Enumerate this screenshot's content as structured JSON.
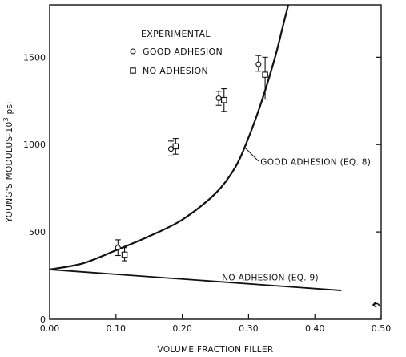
{
  "chart_data": {
    "type": "scatter",
    "title": "",
    "xlabel": "VOLUME FRACTION FILLER",
    "ylabel_prefix": "YOUNG'S MODULUS-10",
    "ylabel_sup": "3",
    "ylabel_suffix": " psi",
    "xlim": [
      0,
      0.5
    ],
    "ylim": [
      0,
      1800
    ],
    "xticks": [
      {
        "value": 0.0,
        "label": "0.00"
      },
      {
        "value": 0.1,
        "label": "0.10"
      },
      {
        "value": 0.2,
        "label": "0.20"
      },
      {
        "value": 0.3,
        "label": "0.30"
      },
      {
        "value": 0.4,
        "label": "0.40"
      },
      {
        "value": 0.5,
        "label": "0.50"
      }
    ],
    "yticks": [
      {
        "value": 0,
        "label": "0"
      },
      {
        "value": 500,
        "label": "500"
      },
      {
        "value": 1000,
        "label": "1000"
      },
      {
        "value": 1500,
        "label": "1500"
      }
    ],
    "grid": false,
    "legend": {
      "title": "EXPERIMENTAL",
      "placement": "top-left",
      "entries": [
        {
          "marker": "circle",
          "label": "GOOD ADHESION"
        },
        {
          "marker": "square",
          "label": "NO ADHESION"
        }
      ]
    },
    "series": [
      {
        "name": "GOOD ADHESION",
        "marker": "circle",
        "points": [
          {
            "x": 0.103,
            "y": 410,
            "err_low": 365,
            "err_high": 455
          },
          {
            "x": 0.183,
            "y": 975,
            "err_low": 935,
            "err_high": 1020
          },
          {
            "x": 0.255,
            "y": 1265,
            "err_low": 1225,
            "err_high": 1305
          },
          {
            "x": 0.315,
            "y": 1460,
            "err_low": 1420,
            "err_high": 1510
          }
        ]
      },
      {
        "name": "NO ADHESION",
        "marker": "square",
        "points": [
          {
            "x": 0.113,
            "y": 370,
            "err_low": 335,
            "err_high": 410
          },
          {
            "x": 0.19,
            "y": 990,
            "err_low": 945,
            "err_high": 1035
          },
          {
            "x": 0.263,
            "y": 1255,
            "err_low": 1190,
            "err_high": 1320
          },
          {
            "x": 0.325,
            "y": 1400,
            "err_low": 1260,
            "err_high": 1500
          }
        ]
      }
    ],
    "curves": [
      {
        "name": "GOOD ADHESION (EQ. 8)",
        "points": [
          {
            "x": 0.0,
            "y": 285
          },
          {
            "x": 0.05,
            "y": 320
          },
          {
            "x": 0.1,
            "y": 395
          },
          {
            "x": 0.15,
            "y": 475
          },
          {
            "x": 0.2,
            "y": 570
          },
          {
            "x": 0.25,
            "y": 720
          },
          {
            "x": 0.28,
            "y": 870
          },
          {
            "x": 0.3,
            "y": 1040
          },
          {
            "x": 0.32,
            "y": 1250
          },
          {
            "x": 0.34,
            "y": 1500
          },
          {
            "x": 0.352,
            "y": 1680
          },
          {
            "x": 0.36,
            "y": 1800
          }
        ]
      },
      {
        "name": "NO ADHESION (EQ. 9)",
        "points": [
          {
            "x": 0.0,
            "y": 285
          },
          {
            "x": 0.44,
            "y": 165
          }
        ]
      }
    ],
    "annotations": [
      {
        "text": "GOOD ADHESION (EQ. 8)",
        "x": 0.318,
        "y": 885,
        "pointer_from": {
          "x": 0.315,
          "y": 905
        },
        "pointer_to": {
          "x": 0.294,
          "y": 985
        }
      },
      {
        "text": "NO ADHESION (EQ. 9)",
        "x": 0.26,
        "y": 223
      }
    ]
  }
}
